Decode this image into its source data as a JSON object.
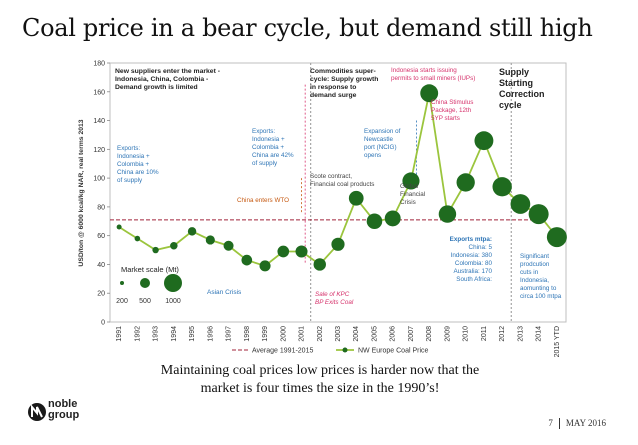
{
  "slide": {
    "title": "Coal price in a bear cycle, but demand still high",
    "caption_line1": "Maintaining coal prices low prices is harder now that the",
    "caption_line2": "market is four times the size in the 1990’s!",
    "page_number": "7",
    "date": "MAY 2016",
    "logo_line1": "noble",
    "logo_line2": "group"
  },
  "colors": {
    "series_line": "#9bc53d",
    "bubble": "#1f6b1f",
    "average_line": "#a0233a",
    "annotation_blue": "#2e75b6",
    "annotation_orange": "#c65911",
    "annotation_pink": "#d6336c",
    "divider": "#a6a6a6"
  },
  "chart_data": {
    "type": "line",
    "ylabel": "USD/ton @ 6000 kcal/kg NAR, real terms 2013",
    "ylim": [
      0,
      180
    ],
    "yticks": [
      0,
      20,
      40,
      60,
      80,
      100,
      120,
      140,
      160,
      180
    ],
    "categories": [
      "1991",
      "1992",
      "1993",
      "1994",
      "1995",
      "1996",
      "1997",
      "1998",
      "1999",
      "2000",
      "2001",
      "2002",
      "2003",
      "2004",
      "2005",
      "2006",
      "2007",
      "2008",
      "2009",
      "2010",
      "2011",
      "2012",
      "2013",
      "2014",
      "2015 YTD"
    ],
    "series": [
      {
        "name": "NW Europe Coal Price",
        "values": [
          66,
          58,
          50,
          53,
          63,
          57,
          53,
          43,
          39,
          49,
          49,
          40,
          54,
          86,
          70,
          72,
          98,
          159,
          75,
          97,
          126,
          94,
          82,
          75,
          59
        ],
        "market_size_mt": [
          200,
          220,
          250,
          290,
          330,
          360,
          400,
          430,
          450,
          480,
          500,
          520,
          560,
          650,
          700,
          720,
          800,
          850,
          820,
          880,
          920,
          950,
          980,
          1000,
          1000
        ]
      },
      {
        "name": "Average 1991-2015",
        "value": 71
      }
    ],
    "legend": [
      "Average 1991-2015",
      "NW Europe Coal Price"
    ],
    "market_scale": {
      "title": "Market scale (Mt)",
      "labels": [
        "200",
        "500",
        "1000"
      ]
    },
    "phases": [
      {
        "title": "New suppliers enter the market - Indonesia, China, Colombia - Demand growth is limited"
      },
      {
        "title": "Commodities super-cycle: Supply growth in response to demand surge"
      },
      {
        "title": "Supply Starting Correction cycle"
      }
    ],
    "annotations": {
      "exports1": [
        "Exports:",
        "Indonesia +",
        "Colombia +",
        "China are 10%",
        "of supply"
      ],
      "exports2": [
        "Exports:",
        "Indonesia +",
        "Colombia +",
        "China are 42%",
        "of supply"
      ],
      "china_wto": "China enters WTO",
      "asian_crisis": "Asian Crisis",
      "scote": [
        "Scote contract,",
        "Financial coal products"
      ],
      "kpc": [
        "Sale of KPC",
        "BP Exits Coal"
      ],
      "ncig": [
        "Expansion of",
        "Newcastle",
        "port (NCIG)",
        "opens"
      ],
      "iups": [
        "Indonesia starts issuing",
        "permits to small miners (IUPs)"
      ],
      "stimulus": [
        "China Stimulus",
        "Package, 12th",
        "5YP starts"
      ],
      "gfc": [
        "Global",
        "Financial",
        "Crisis"
      ],
      "exports_mtpa": [
        "Exports mtpa:",
        "China: 5",
        "Indonesia: 380",
        "Colombia: 80",
        "Australia: 170",
        "South Africa:"
      ],
      "cuts": [
        "Significant",
        "prodcution",
        "cuts in",
        "Indonesia,",
        "aomunting to",
        "circa 100 mtpa"
      ]
    }
  }
}
